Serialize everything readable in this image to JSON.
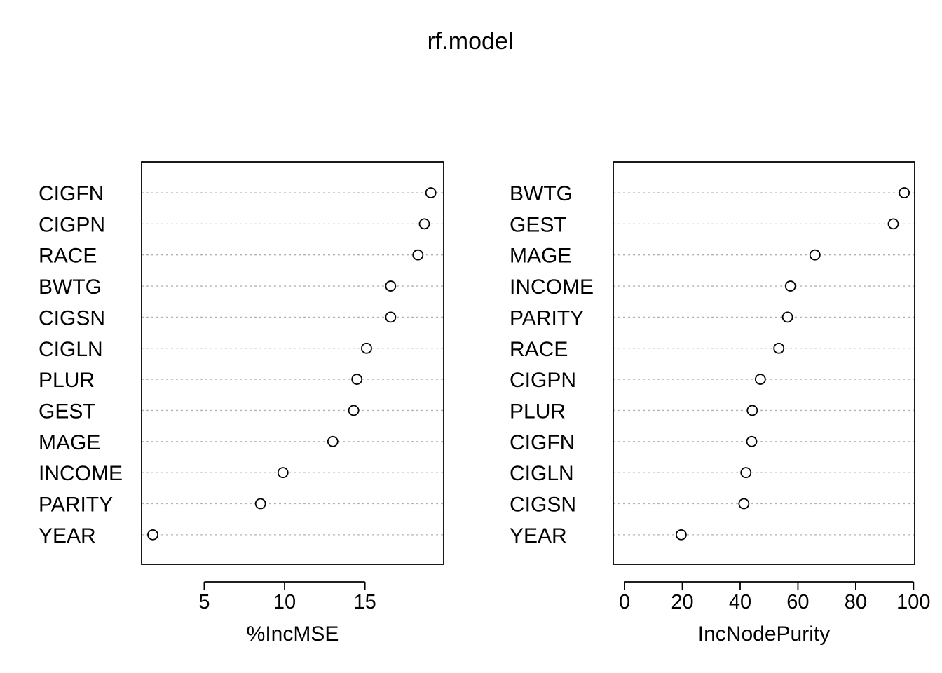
{
  "title": "rf.model",
  "chart_data": [
    {
      "type": "scatter",
      "subtype": "dotchart",
      "xlabel": "%IncMSE",
      "ylabel": "",
      "categories": [
        "CIGFN",
        "CIGPN",
        "RACE",
        "BWTG",
        "CIGSN",
        "CIGLN",
        "PLUR",
        "GEST",
        "MAGE",
        "INCOME",
        "PARITY",
        "YEAR"
      ],
      "values": [
        19.1,
        18.7,
        18.3,
        16.6,
        16.6,
        15.1,
        14.5,
        14.3,
        13.0,
        9.9,
        8.5,
        1.8
      ],
      "xlim": [
        1.1,
        19.9
      ],
      "xticks": [
        5,
        10,
        15
      ],
      "grid": "dotted horizontal lines per category"
    },
    {
      "type": "scatter",
      "subtype": "dotchart",
      "xlabel": "IncNodePurity",
      "ylabel": "",
      "categories": [
        "BWTG",
        "GEST",
        "MAGE",
        "INCOME",
        "PARITY",
        "RACE",
        "CIGPN",
        "PLUR",
        "CIGFN",
        "CIGLN",
        "CIGSN",
        "YEAR"
      ],
      "values": [
        96.8,
        93.0,
        65.9,
        57.4,
        56.4,
        53.4,
        47.0,
        44.2,
        44.0,
        42.0,
        41.3,
        19.6
      ],
      "xlim": [
        -3.9,
        100.4
      ],
      "xticks": [
        0,
        20,
        40,
        60,
        80,
        100
      ],
      "grid": "dotted horizontal lines per category"
    }
  ]
}
